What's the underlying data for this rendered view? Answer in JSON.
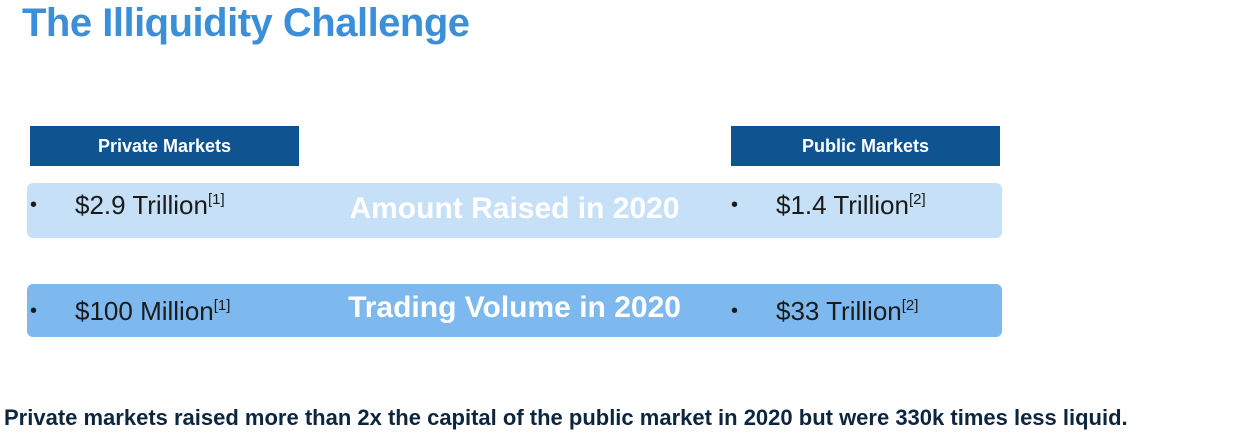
{
  "title": "The Illiquidity Challenge",
  "columns": {
    "private": "Private Markets",
    "public": "Public Markets"
  },
  "rows": [
    {
      "label": "Amount Raised in 2020",
      "private": {
        "value": "$2.9 Trillion",
        "ref": "[1]"
      },
      "public": {
        "value": "$1.4 Trillion",
        "ref": "[2]"
      }
    },
    {
      "label": "Trading Volume in 2020",
      "private": {
        "value": "$100 Million",
        "ref": "[1]"
      },
      "public": {
        "value": "$33 Trillion",
        "ref": "[2]"
      }
    }
  ],
  "footer": "Private markets raised more than 2x the capital of the public market in 2020 but were 330k times less liquid."
}
